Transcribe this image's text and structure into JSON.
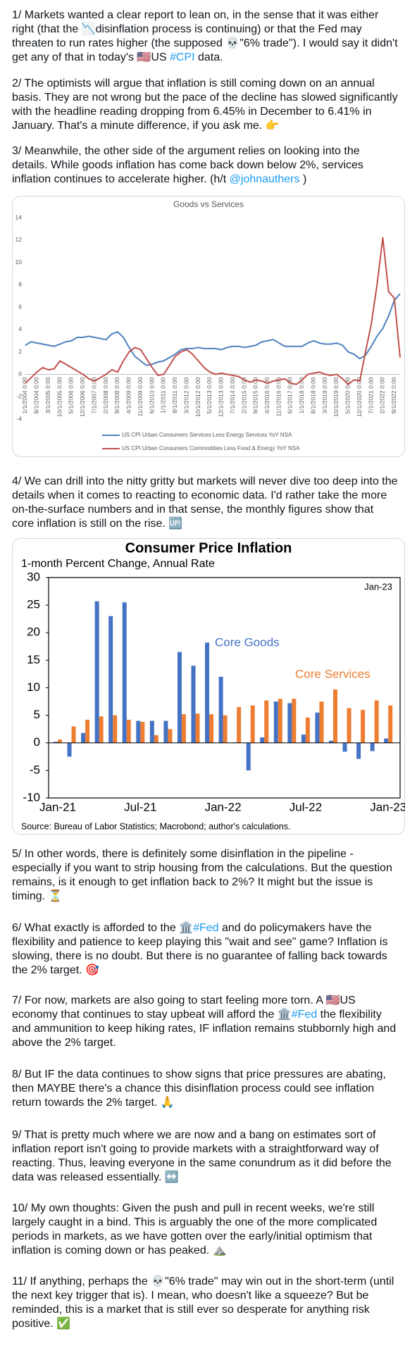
{
  "paragraphs": [
    {
      "segments": [
        "1/ Markets wanted a clear report to lean on, in the sense that it was either right (that the 📉disinflation process is continuing) or that the Fed may threaten to run rates higher (the supposed 💀\"6% trade\"). I would say it didn't get any of that in today's 🇺🇸US ",
        {
          "text": "#CPI",
          "color": "#1d9bf0"
        },
        " data."
      ]
    },
    {
      "segments": [
        "2/ The optimists will argue that inflation is still coming down on an annual basis. They are not wrong but the pace of the decline has slowed significantly with the headline reading dropping from 6.45% in December to 6.41% in January. That's a minute difference, if you ask me. 👉"
      ]
    },
    {
      "segments": [
        "3/ Meanwhile, the other side of the argument relies on looking into the details. While goods inflation has come back down below 2%, services inflation continues to accelerate higher. (h/t ",
        {
          "text": "@johnauthers",
          "color": "#1d9bf0"
        },
        " )"
      ]
    },
    {
      "segments": [
        "4/ We can drill into the nitty gritty but markets will never dive too deep into the details when it comes to reacting to economic data. I'd rather take the more on-the-surface numbers and in that sense, the monthly figures show that core inflation is still on the rise. 🆙"
      ]
    },
    {
      "segments": [
        "5/ In other words, there is definitely some disinflation in the pipeline - especially if you want to strip housing from the calculations. But the question remains, is it enough to get inflation back to 2%? It might but the issue is timing. ⏳"
      ]
    },
    {
      "segments": [
        "6/ What exactly is afforded to the 🏛️",
        {
          "text": "#Fed",
          "color": "#1d9bf0"
        },
        " and do policymakers have the flexibility and patience to keep playing this \"wait and see\" game? Inflation is slowing, there is no doubt. But there is no guarantee of falling back towards the 2% target. 🎯"
      ]
    },
    {
      "segments": [
        "7/ For now, markets are also going to start feeling more torn. A 🇺🇸US economy that continues to stay upbeat will afford the 🏛️",
        {
          "text": "#Fed",
          "color": "#1d9bf0"
        },
        " the flexibility and ammunition to keep hiking rates, IF inflation remains stubbornly high and above the 2% target."
      ]
    },
    {
      "segments": [
        "8/ But IF the data continues to show signs that price pressures are abating, then MAYBE there's a chance this disinflation process could see inflation return towards the 2% target. 🙏"
      ]
    },
    {
      "segments": [
        "9/ That is pretty much where we are now and a bang on estimates sort of inflation report isn't going to provide markets with a straightforward way of reacting. Thus, leaving everyone in the same conundrum as it did before the data was released essentially. ↔️"
      ]
    },
    {
      "segments": [
        "10/ My own thoughts: Given the push and pull in recent weeks, we're still largely caught in a bind. This is arguably the one of the more complicated periods in markets, as we have gotten over the early/initial optimism that inflation is coming down or has peaked. ⛰️"
      ]
    },
    {
      "segments": [
        "11/ If anything, perhaps the 💀\"6% trade\" may win out in the short-term (until the next key trigger that is). I mean, who doesn't like a squeeze? But be reminded, this is a market that is still ever so desperate for anything risk positive. ✅"
      ]
    }
  ],
  "chart_data": [
    {
      "type": "line",
      "title": "Goods vs Services",
      "categories": [
        "1/1/2004 0:00",
        null,
        "8/1/2004 0:00",
        null,
        "3/1/2005 0:00",
        null,
        "10/1/2005 0:00",
        null,
        "5/1/2006 0:00",
        null,
        "12/1/2006 0:00",
        null,
        "7/1/2007 0:00",
        null,
        "2/1/2008 0:00",
        null,
        "9/1/2008 0:00",
        null,
        "4/1/2009 0:00",
        null,
        "11/1/2009 0:00",
        null,
        "6/1/2010 0:00",
        null,
        "1/1/2011 0:00",
        null,
        "8/1/2011 0:00",
        null,
        "3/1/2012 0:00",
        null,
        "10/1/2012 0:00",
        null,
        "5/1/2013 0:00",
        null,
        "12/1/2013 0:00",
        null,
        "7/1/2014 0:00",
        null,
        "2/1/2015 0:00",
        null,
        "9/1/2015 0:00",
        null,
        "4/1/2016 0:00",
        null,
        "11/1/2016 0:00",
        null,
        "6/1/2017 0:00",
        null,
        "1/1/2018 0:00",
        null,
        "8/1/2018 0:00",
        null,
        "3/1/2019 0:00",
        null,
        "10/1/2019 0:00",
        null,
        "5/1/2020 0:00",
        null,
        "12/1/2020 0:00",
        null,
        "7/1/2021 0:00",
        null,
        "2/1/2022 0:00",
        null,
        "9/1/2022 0:00",
        null
      ],
      "series": [
        {
          "name": "US CPI Urban Consumers Services Less Energy Services YoY NSA",
          "color": "#4f81bd",
          "values": [
            2.6,
            2.9,
            2.8,
            2.7,
            2.6,
            2.5,
            2.7,
            2.9,
            3.0,
            3.3,
            3.3,
            3.4,
            3.3,
            3.2,
            3.1,
            3.6,
            3.8,
            3.3,
            2.4,
            1.6,
            1.2,
            0.8,
            0.9,
            1.1,
            1.2,
            1.5,
            1.8,
            2.2,
            2.3,
            2.3,
            2.4,
            2.3,
            2.3,
            2.3,
            2.2,
            2.4,
            2.5,
            2.5,
            2.4,
            2.5,
            2.6,
            2.9,
            3.0,
            3.1,
            2.8,
            2.5,
            2.5,
            2.5,
            2.5,
            2.8,
            3.0,
            2.8,
            2.7,
            2.7,
            2.8,
            2.6,
            2.0,
            1.8,
            1.4,
            1.7,
            2.5,
            3.4,
            4.1,
            5.2,
            6.6,
            7.2
          ]
        },
        {
          "name": "US CPI Urban Consumers Commodities Less Food & Energy YoY NSA",
          "color": "#c0504d",
          "values": [
            -0.8,
            -0.3,
            0.2,
            0.6,
            0.4,
            0.5,
            1.2,
            0.9,
            0.6,
            0.3,
            0.0,
            -0.4,
            -0.6,
            -0.3,
            0.0,
            0.4,
            0.2,
            1.2,
            2.0,
            2.4,
            2.2,
            1.4,
            0.6,
            -0.1,
            0.0,
            0.8,
            1.6,
            2.0,
            2.2,
            1.8,
            1.2,
            0.6,
            0.2,
            0.0,
            0.1,
            0.0,
            -0.1,
            -0.2,
            -0.5,
            -0.7,
            -0.5,
            -0.6,
            -0.8,
            -0.6,
            -0.5,
            -0.4,
            -0.8,
            -0.9,
            -0.5,
            0.0,
            0.1,
            0.2,
            0.0,
            -0.1,
            0.0,
            -0.4,
            -0.9,
            -0.5,
            -0.6,
            2.0,
            4.5,
            8.0,
            12.2,
            7.4,
            6.8,
            1.5
          ]
        }
      ],
      "ylim": [
        -4,
        14
      ],
      "yticks": [
        -4,
        -2,
        0,
        2,
        4,
        6,
        8,
        10,
        12,
        14
      ],
      "grid": false
    },
    {
      "type": "bar",
      "title": "Consumer Price Inflation",
      "subtitle": "1-month Percent Change, Annual Rate",
      "annotation": "Jan-23",
      "source": "Source: Bureau of Labor Statistics; Macrobond; author's calculations.",
      "categories": [
        "Jan-21",
        null,
        null,
        null,
        null,
        null,
        "Jul-21",
        null,
        null,
        null,
        null,
        null,
        "Jan-22",
        null,
        null,
        null,
        null,
        null,
        "Jul-22",
        null,
        null,
        null,
        null,
        null,
        "Jan-23"
      ],
      "series": [
        {
          "name": "Core Goods",
          "color": "#4472c4",
          "values": [
            0.2,
            -2.5,
            1.8,
            25.7,
            23.0,
            25.5,
            4.0,
            4.0,
            4.0,
            16.5,
            14.0,
            18.2,
            12.0,
            0.1,
            -5.0,
            1.0,
            7.5,
            7.2,
            1.5,
            5.5,
            0.4,
            -1.6,
            -2.9,
            -1.5,
            0.8
          ]
        },
        {
          "name": "Core Services",
          "color": "#ed7d31",
          "values": [
            0.6,
            3.0,
            4.2,
            4.8,
            5.0,
            4.2,
            3.8,
            1.4,
            2.5,
            5.2,
            5.3,
            5.2,
            5.0,
            6.5,
            6.8,
            7.7,
            8.0,
            8.0,
            4.6,
            7.5,
            9.7,
            6.3,
            6.0,
            7.7,
            6.8
          ]
        }
      ],
      "ylim": [
        -10,
        30
      ],
      "yticks": [
        -10,
        -5,
        0,
        5,
        10,
        15,
        20,
        25,
        30
      ],
      "grid": false
    }
  ]
}
